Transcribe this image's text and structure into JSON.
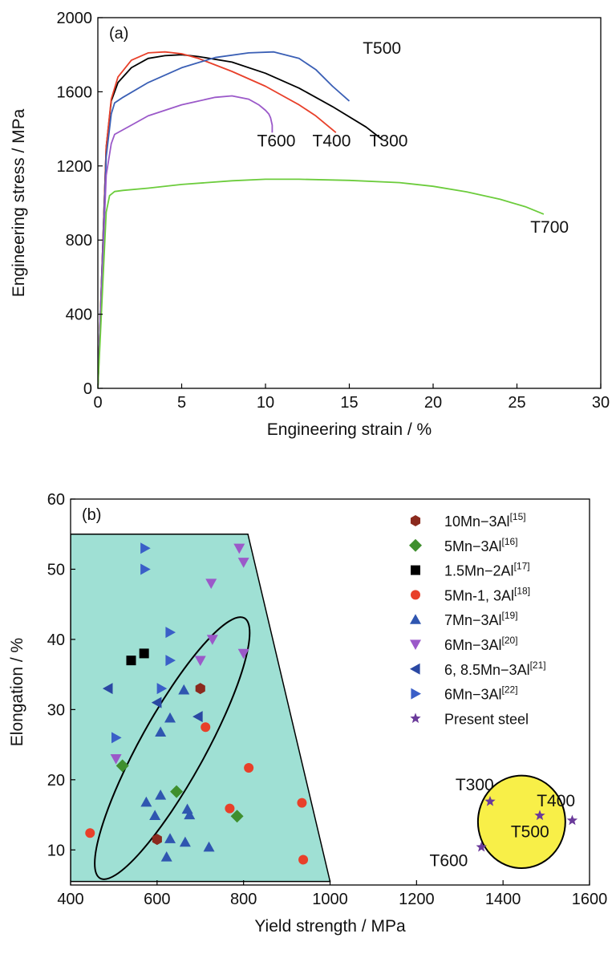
{
  "chart_data": [
    {
      "type": "line",
      "panel_label": "(a)",
      "xlabel": "Engineering strain / %",
      "ylabel": "Engineering stress / MPa",
      "xlim": [
        0,
        30
      ],
      "ylim": [
        0,
        2000
      ],
      "xticks": [
        0,
        5,
        10,
        15,
        20,
        25,
        30
      ],
      "yticks": [
        0,
        400,
        800,
        1200,
        1600,
        2000
      ],
      "grid": false,
      "series": [
        {
          "name": "T300",
          "color": "#000000",
          "x": [
            0,
            0.5,
            0.8,
            1.2,
            2,
            3,
            4,
            5,
            6,
            8,
            10,
            12,
            14,
            16,
            17
          ],
          "y": [
            0,
            1300,
            1550,
            1650,
            1730,
            1780,
            1795,
            1800,
            1790,
            1760,
            1700,
            1620,
            1520,
            1410,
            1340
          ]
        },
        {
          "name": "T400",
          "color": "#e8402a",
          "x": [
            0,
            0.5,
            0.8,
            1.2,
            2,
            3,
            4,
            5,
            6,
            8,
            10,
            12,
            13,
            14.2
          ],
          "y": [
            0,
            1300,
            1560,
            1680,
            1770,
            1810,
            1815,
            1805,
            1780,
            1710,
            1630,
            1530,
            1470,
            1380
          ]
        },
        {
          "name": "T500",
          "color": "#3a5fb5",
          "x": [
            0,
            0.5,
            0.8,
            1,
            1.5,
            3,
            5,
            7,
            9,
            10.5,
            12,
            13,
            14,
            15
          ],
          "y": [
            0,
            1250,
            1480,
            1540,
            1570,
            1650,
            1730,
            1785,
            1810,
            1815,
            1780,
            1720,
            1630,
            1550
          ]
        },
        {
          "name": "T600",
          "color": "#9b59c9",
          "x": [
            0,
            0.5,
            0.8,
            1,
            2,
            3,
            5,
            7,
            8,
            9,
            9.6,
            10,
            10.2,
            10.3,
            10.4,
            10.4
          ],
          "y": [
            0,
            1150,
            1320,
            1370,
            1420,
            1470,
            1530,
            1570,
            1578,
            1560,
            1530,
            1500,
            1480,
            1460,
            1420,
            1380
          ]
        },
        {
          "name": "T700",
          "color": "#6ccc3c",
          "x": [
            0,
            0.5,
            0.7,
            1,
            1.5,
            3,
            5,
            8,
            10,
            12,
            15,
            18,
            20,
            22,
            24,
            25.5,
            26.6
          ],
          "y": [
            0,
            950,
            1040,
            1062,
            1068,
            1080,
            1100,
            1120,
            1128,
            1128,
            1122,
            1110,
            1090,
            1060,
            1020,
            980,
            940
          ]
        }
      ],
      "annotations": [
        {
          "text": "T500",
          "x": 15.8,
          "y": 1805
        },
        {
          "text": "T600",
          "x": 9.5,
          "y": 1305
        },
        {
          "text": "T400",
          "x": 12.8,
          "y": 1305
        },
        {
          "text": "T300",
          "x": 16.2,
          "y": 1305
        },
        {
          "text": "T700",
          "x": 25.8,
          "y": 840
        }
      ]
    },
    {
      "type": "scatter",
      "panel_label": "(b)",
      "xlabel": "Yield strength / MPa",
      "ylabel": "Elongation / %",
      "xlim": [
        400,
        1600
      ],
      "ylim": [
        5,
        60
      ],
      "xticks": [
        400,
        600,
        800,
        1000,
        1200,
        1400,
        1600
      ],
      "yticks": [
        10,
        20,
        30,
        40,
        50,
        60
      ],
      "grid": false,
      "legend_position": "top-right",
      "region": {
        "color": "#9fe0d4",
        "x": [
          400,
          810,
          1000,
          400
        ],
        "y": [
          55,
          55,
          5.5,
          5.5
        ]
      },
      "ellipses": [
        {
          "color": "none",
          "cx": 635,
          "cy": 24.5,
          "rx": 75,
          "ry": 21.2,
          "rotate_deg": 29
        },
        {
          "color": "#f8ef48",
          "cx": 1443,
          "cy": 14,
          "rx": 101,
          "ry": 6.6,
          "rotate_deg": 0
        }
      ],
      "series": [
        {
          "name": "10Mn−3Al",
          "ref": "[15]",
          "marker": "hexagon",
          "color": "#8b2a1e",
          "x": [
            600,
            700
          ],
          "y": [
            11.5,
            33
          ]
        },
        {
          "name": "5Mn−3Al",
          "ref": "[16]",
          "marker": "diamond",
          "color": "#3f8f2e",
          "x": [
            520,
            645,
            785
          ],
          "y": [
            22,
            18.3,
            14.8
          ]
        },
        {
          "name": "1.5Mn−2Al",
          "ref": "[17]",
          "marker": "square",
          "color": "#000000",
          "x": [
            540,
            570
          ],
          "y": [
            37,
            38
          ]
        },
        {
          "name": "5Mn-1, 3Al",
          "ref": "[18]",
          "marker": "circle",
          "color": "#e8402a",
          "x": [
            445,
            712,
            768,
            812,
            935,
            938
          ],
          "y": [
            12.4,
            27.5,
            15.9,
            21.7,
            16.7,
            8.6
          ]
        },
        {
          "name": "7Mn−3Al",
          "ref": "[19]",
          "marker": "triangle-up",
          "color": "#2f56b0",
          "x": [
            575,
            595,
            608,
            608,
            622,
            630,
            630,
            662,
            665,
            670,
            675,
            720
          ],
          "y": [
            16.8,
            14.9,
            17.8,
            26.8,
            9.0,
            11.6,
            28.8,
            32.8,
            11.1,
            15.8,
            15.0,
            10.4
          ]
        },
        {
          "name": "6Mn−3Al",
          "ref": "[20]",
          "marker": "triangle-down",
          "color": "#9b59c9",
          "x": [
            505,
            700,
            725,
            728,
            790,
            800,
            800
          ],
          "y": [
            23,
            37,
            48,
            40,
            53,
            51,
            38
          ]
        },
        {
          "name": "6, 8.5Mn−3Al",
          "ref": "[21]",
          "marker": "triangle-left",
          "color": "#2a48a3",
          "x": [
            487,
            600,
            695
          ],
          "y": [
            33,
            31,
            29
          ]
        },
        {
          "name": "6Mn−3Al",
          "ref": "[22]",
          "marker": "triangle-right",
          "color": "#3a5fc8",
          "x": [
            505,
            572,
            572,
            610,
            630,
            630
          ],
          "y": [
            26,
            53,
            50,
            33,
            41,
            37
          ]
        },
        {
          "name": "Present steel",
          "ref": "",
          "marker": "star",
          "color": "#6a3a9a",
          "x": [
            1350,
            1370,
            1485,
            1560
          ],
          "y": [
            10.4,
            16.9,
            14.9,
            14.2
          ]
        }
      ],
      "annotations": [
        {
          "text": "T300",
          "x": 1290,
          "y": 18.5
        },
        {
          "text": "T400",
          "x": 1478,
          "y": 16.2
        },
        {
          "text": "T500",
          "x": 1418,
          "y": 11.8
        },
        {
          "text": "T600",
          "x": 1230,
          "y": 7.7
        }
      ]
    }
  ]
}
